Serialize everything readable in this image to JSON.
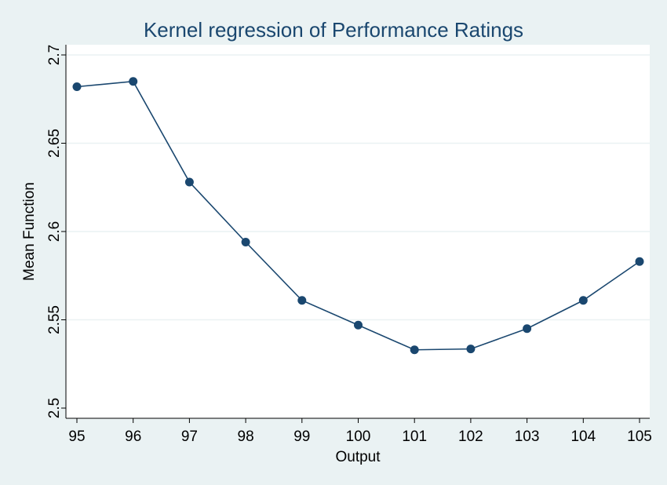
{
  "chart_data": {
    "type": "line",
    "title": "Kernel regression of Performance Ratings",
    "xlabel": "Output",
    "ylabel": "Mean Function",
    "x": [
      95,
      96,
      97,
      98,
      99,
      100,
      101,
      102,
      103,
      104,
      105
    ],
    "series": [
      {
        "values": [
          2.682,
          2.685,
          2.628,
          2.594,
          2.561,
          2.547,
          2.533,
          2.5335,
          2.545,
          2.561,
          2.583
        ],
        "color": "#1a476f"
      }
    ],
    "xlim": [
      95,
      105
    ],
    "ylim": [
      2.5,
      2.7
    ],
    "xticks": [
      95,
      96,
      97,
      98,
      99,
      100,
      101,
      102,
      103,
      104,
      105
    ],
    "yticks": [
      2.5,
      2.55,
      2.6,
      2.65,
      2.7
    ],
    "ytick_labels": [
      "2.5",
      "2.55",
      "2.6",
      "2.65",
      "2.7"
    ],
    "grid": "horizontal",
    "legend": "none",
    "colors": {
      "background": "#eaf2f3",
      "plot_area": "#ffffff",
      "grid": "#eaf2f3",
      "series": "#1a476f"
    }
  }
}
